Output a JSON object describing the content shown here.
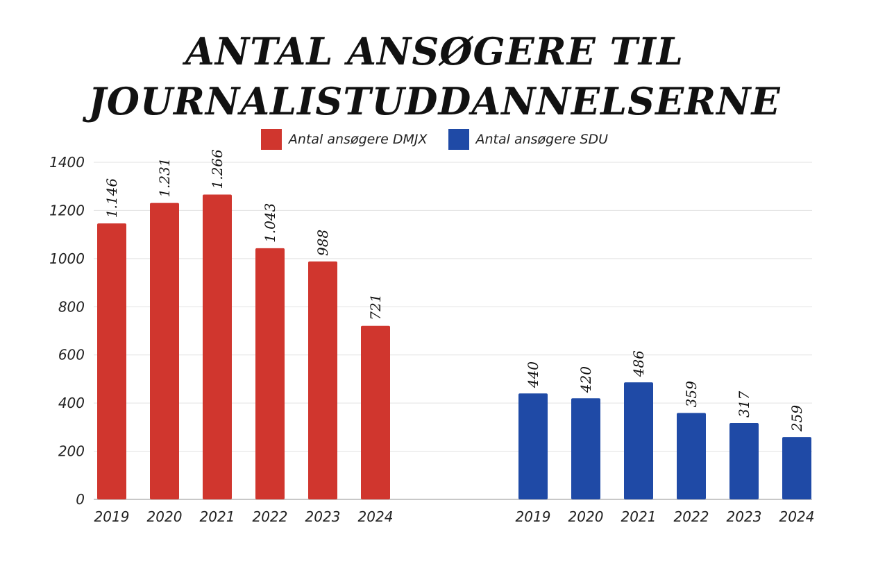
{
  "chart_data": {
    "type": "bar",
    "title_lines": [
      "ANTAL ANSØGERE TIL",
      "JOURNALISTUDDANNELSERNE"
    ],
    "y_ticks": [
      "0",
      "200",
      "400",
      "600",
      "800",
      "1000",
      "1200",
      "1400"
    ],
    "ylim": [
      0,
      1400
    ],
    "grid": true,
    "legend_position": "top-center",
    "series": [
      {
        "name": "Antal ansøgere DMJX",
        "color": "#d0362e",
        "categories": [
          "2019",
          "2020",
          "2021",
          "2022",
          "2023",
          "2024"
        ],
        "values": [
          1146,
          1231,
          1266,
          1043,
          988,
          721
        ],
        "labels": [
          "1.146",
          "1.231",
          "1.266",
          "1.043",
          "988",
          "721"
        ]
      },
      {
        "name": "Antal ansøgere SDU",
        "color": "#1f4aa6",
        "categories": [
          "2019",
          "2020",
          "2021",
          "2022",
          "2023",
          "2024"
        ],
        "values": [
          440,
          420,
          486,
          359,
          317,
          259
        ],
        "labels": [
          "440",
          "420",
          "486",
          "359",
          "317",
          "259"
        ]
      }
    ]
  }
}
